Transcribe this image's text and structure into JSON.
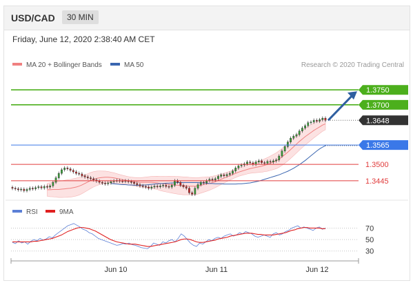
{
  "header": {
    "symbol": "USD/CAD",
    "timeframe": "30 MIN",
    "datetime": "Friday, June 12, 2020 2:38:40 AM CET"
  },
  "legend": {
    "bollinger": "MA 20 + Bollinger Bands",
    "ma50": "MA 50",
    "credit": "Research © 2020 Trading Central",
    "rsi": "RSI",
    "rsi_ma": "9MA"
  },
  "colors": {
    "resistance": "#4caf1c",
    "current": "#333333",
    "support_blue": "#3a78e8",
    "support_red": "#e03b3b",
    "bollinger": "#f08080",
    "ma50": "#3a66b0",
    "rsi": "#5b7fd6",
    "rsi_ma": "#e02020",
    "arrow": "#2f5fa0"
  },
  "levels": [
    {
      "label": "1.3750",
      "kind": "resistance"
    },
    {
      "label": "1.3700",
      "kind": "resistance"
    },
    {
      "label": "1.3648",
      "kind": "current"
    },
    {
      "label": "1.3565",
      "kind": "support_blue"
    },
    {
      "label": "1.3500",
      "kind": "support_red"
    },
    {
      "label": "1.3445",
      "kind": "support_red"
    }
  ],
  "rsi_levels": [
    "70",
    "50",
    "30"
  ],
  "x_labels": [
    "Jun 10",
    "Jun 11",
    "Jun 12"
  ],
  "chart_data": [
    {
      "type": "candlestick",
      "title": "USD/CAD",
      "ylim": [
        1.338,
        1.382
      ],
      "levels": [
        1.375,
        1.37,
        1.3648,
        1.3565,
        1.35,
        1.3445
      ],
      "close": [
        1.342,
        1.3418,
        1.3415,
        1.3417,
        1.3412,
        1.3416,
        1.342,
        1.3418,
        1.3422,
        1.3425,
        1.3421,
        1.3426,
        1.3424,
        1.3428,
        1.344,
        1.3455,
        1.347,
        1.3482,
        1.3488,
        1.3485,
        1.348,
        1.3475,
        1.347,
        1.3468,
        1.3462,
        1.3458,
        1.3455,
        1.3452,
        1.3448,
        1.3444,
        1.344,
        1.3437,
        1.3435,
        1.3438,
        1.3442,
        1.3445,
        1.3446,
        1.3444,
        1.3443,
        1.3445,
        1.3442,
        1.344,
        1.3436,
        1.3432,
        1.3428,
        1.3426,
        1.3424,
        1.342,
        1.3424,
        1.3427,
        1.3425,
        1.3428,
        1.343,
        1.3426,
        1.3424,
        1.343,
        1.3445,
        1.344,
        1.343,
        1.3425,
        1.342,
        1.3405,
        1.34,
        1.342,
        1.3432,
        1.344,
        1.3438,
        1.3445,
        1.345,
        1.3448,
        1.3452,
        1.346,
        1.3465,
        1.3462,
        1.3466,
        1.347,
        1.3478,
        1.3488,
        1.3495,
        1.3498,
        1.3502,
        1.3508,
        1.3505,
        1.35,
        1.3508,
        1.3512,
        1.3506,
        1.3504,
        1.351,
        1.3508,
        1.3512,
        1.3515,
        1.3528,
        1.3545,
        1.356,
        1.3575,
        1.3588,
        1.3595,
        1.36,
        1.3612,
        1.3622,
        1.363,
        1.364,
        1.3642,
        1.3648,
        1.3645,
        1.365,
        1.3655,
        1.3648
      ],
      "ma20": [
        1.3415,
        1.3415,
        1.3416,
        1.3416,
        1.3416,
        1.3417,
        1.3418,
        1.3419,
        1.342,
        1.3422,
        1.3424,
        1.3427,
        1.3431,
        1.3436,
        1.3441,
        1.3446,
        1.345,
        1.3453,
        1.3455,
        1.3456,
        1.3457,
        1.3457,
        1.3456,
        1.3455,
        1.3453,
        1.3451,
        1.3449,
        1.3447,
        1.3445,
        1.3443,
        1.3442,
        1.3441,
        1.344,
        1.344,
        1.344,
        1.344,
        1.344,
        1.3439,
        1.3438,
        1.3436,
        1.3435,
        1.3434,
        1.3433,
        1.3432,
        1.3431,
        1.343,
        1.3429,
        1.3428,
        1.3428,
        1.3427,
        1.3427,
        1.3427,
        1.3428,
        1.343,
        1.3432,
        1.3434,
        1.3436,
        1.3439,
        1.3442,
        1.3446,
        1.345,
        1.3454,
        1.3458,
        1.3462,
        1.3466,
        1.347,
        1.3474,
        1.3477,
        1.348,
        1.3483,
        1.3486,
        1.3488,
        1.349,
        1.3492,
        1.3494,
        1.3497,
        1.35,
        1.3504,
        1.3508,
        1.3512,
        1.3518,
        1.3525,
        1.3533,
        1.3541,
        1.355,
        1.3559,
        1.3568,
        1.3577,
        1.3585,
        1.3593,
        1.36,
        1.3607,
        1.3614,
        1.362,
        1.3626,
        1.3632,
        1.3636
      ],
      "ma50": [
        1.3436,
        1.3435,
        1.3434,
        1.3433,
        1.3432,
        1.3432,
        1.3431,
        1.3431,
        1.343,
        1.343,
        1.343,
        1.3431,
        1.3431,
        1.3432,
        1.3433,
        1.3434,
        1.3435,
        1.3436,
        1.3436,
        1.3437,
        1.3437,
        1.3438,
        1.3438,
        1.3439,
        1.3439,
        1.3439,
        1.3439,
        1.3439,
        1.3439,
        1.3439,
        1.3439,
        1.3438,
        1.3438,
        1.3437,
        1.3436,
        1.3436,
        1.3435,
        1.3435,
        1.3435,
        1.3434,
        1.3434,
        1.3434,
        1.3434,
        1.3434,
        1.3435,
        1.3435,
        1.3436,
        1.3437,
        1.3438,
        1.344,
        1.3442,
        1.3444,
        1.3447,
        1.345,
        1.3453,
        1.3456,
        1.3459,
        1.3462,
        1.3465,
        1.3469,
        1.3473,
        1.3477,
        1.3482,
        1.3487,
        1.3493,
        1.3499,
        1.3506,
        1.3513,
        1.3521,
        1.3529,
        1.3537,
        1.3545,
        1.3552,
        1.3558,
        1.3563
      ]
    },
    {
      "type": "line",
      "title": "RSI",
      "ylim": [
        20,
        85
      ],
      "levels": [
        70,
        50,
        30
      ],
      "series": [
        {
          "name": "RSI",
          "values": [
            45,
            43,
            48,
            44,
            46,
            42,
            47,
            50,
            48,
            52,
            49,
            51,
            55,
            53,
            58,
            62,
            66,
            70,
            74,
            76,
            78,
            75,
            72,
            68,
            66,
            62,
            60,
            56,
            52,
            50,
            48,
            46,
            44,
            42,
            40,
            41,
            43,
            42,
            44,
            41,
            40,
            38,
            36,
            35,
            34,
            38,
            44,
            42,
            40,
            46,
            44,
            48,
            50,
            46,
            52,
            60,
            56,
            50,
            44,
            40,
            38,
            44,
            42,
            46,
            50,
            48,
            52,
            54,
            52,
            56,
            58,
            60,
            56,
            58,
            62,
            60,
            64,
            62,
            60,
            56,
            54,
            56,
            58,
            56,
            54,
            60,
            62,
            58,
            60,
            64,
            66,
            70,
            72,
            74,
            70,
            72,
            70,
            68,
            66,
            70,
            72,
            68,
            70
          ]
        },
        {
          "name": "9MA",
          "values": [
            46,
            46,
            46,
            46,
            46,
            46,
            46,
            47,
            47,
            48,
            49,
            50,
            51,
            52,
            54,
            56,
            58,
            61,
            64,
            66,
            68,
            70,
            71,
            71,
            70,
            69,
            67,
            65,
            62,
            59,
            56,
            53,
            50,
            48,
            46,
            45,
            44,
            43,
            42,
            42,
            42,
            41,
            40,
            39,
            38,
            38,
            39,
            40,
            41,
            42,
            43,
            44,
            45,
            46,
            48,
            50,
            51,
            51,
            50,
            48,
            46,
            45,
            45,
            46,
            47,
            48,
            49,
            51,
            52,
            53,
            54,
            56,
            57,
            58,
            59,
            60,
            61,
            61,
            61,
            60,
            59,
            59,
            58,
            58,
            58,
            58,
            59,
            60,
            61,
            62,
            64,
            66,
            67,
            69,
            70,
            71,
            71,
            70,
            70,
            70,
            70,
            69,
            69
          ]
        }
      ]
    }
  ]
}
